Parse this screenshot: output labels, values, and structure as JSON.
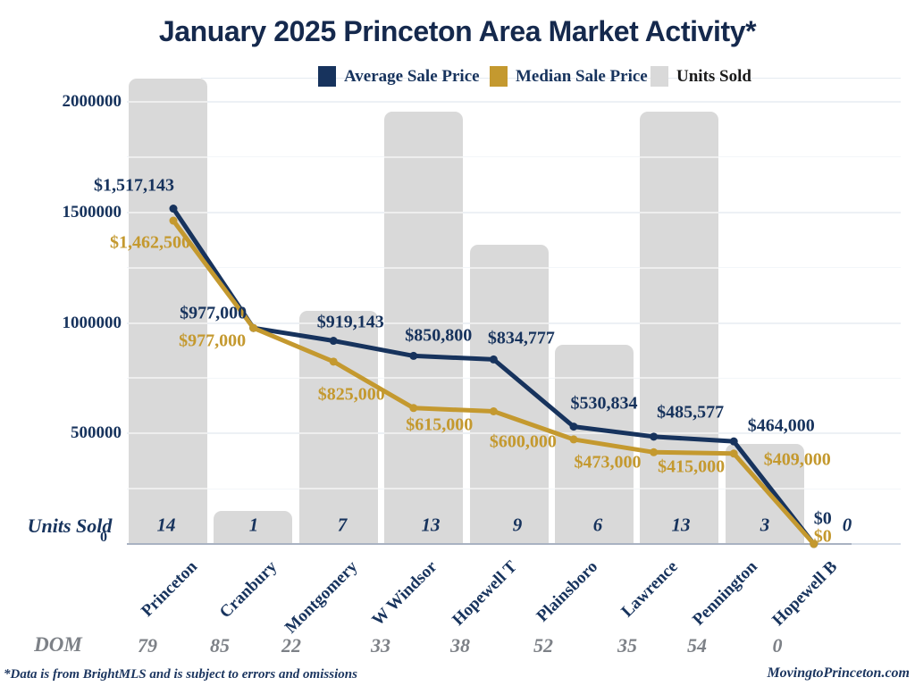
{
  "title": "January 2025 Princeton Area Market Activity*",
  "legend": {
    "items": [
      {
        "label": "Average Sale Price",
        "color": "#17335d",
        "text_color": "#17335d"
      },
      {
        "label": "Median Sale Price",
        "color": "#c4992f",
        "text_color": "#17335d"
      },
      {
        "label": "Units Sold",
        "color": "#d9d9d9",
        "text_color": "#1a1a1a"
      }
    ]
  },
  "rows": {
    "units_sold_label": "Units Sold",
    "dom_label": "DOM"
  },
  "footer": {
    "disclaimer": "*Data is from BrightMLS and is subject to errors and omissions",
    "website": "MovingtoPrinceton.com"
  },
  "colors": {
    "navy": "#17335d",
    "gold": "#c4992f",
    "bar_gray": "#d9d9d9",
    "gridline": "#d8dfe9",
    "zero_axis": "#a9b2c2",
    "dom_gray": "#7d8187",
    "title_navy": "#15294d"
  },
  "y_axis": {
    "ticks": [
      {
        "label": "2000000",
        "value": 2000000
      },
      {
        "label": "1500000",
        "value": 1500000
      },
      {
        "label": "1000000",
        "value": 1000000
      },
      {
        "label": "500000",
        "value": 500000
      },
      {
        "label": "0",
        "value": 0
      }
    ]
  },
  "chart_data": {
    "type": "combo",
    "subtypes": [
      "line",
      "line",
      "bar"
    ],
    "categories": [
      "Princeton",
      "Cranbury",
      "Montgomery",
      "W Windsor",
      "Hopewell T",
      "Plainsboro",
      "Lawrence",
      "Pennington",
      "Hopewell B"
    ],
    "series": [
      {
        "name": "Average Sale Price",
        "type": "line",
        "color": "#17335d",
        "values": [
          1517143,
          977000,
          919143,
          850800,
          834777,
          530834,
          485577,
          464000,
          0
        ],
        "labels": [
          "$1,517,143",
          "$977,000",
          "$919,143",
          "$850,800",
          "$834,777",
          "$530,834",
          "$485,577",
          "$464,000",
          "$0"
        ]
      },
      {
        "name": "Median Sale Price",
        "type": "line",
        "color": "#c4992f",
        "values": [
          1462500,
          977000,
          825000,
          615000,
          600000,
          473000,
          415000,
          409000,
          0
        ],
        "labels": [
          "$1,462,500",
          "$977,000",
          "$825,000",
          "$615,000",
          "$600,000",
          "$473,000",
          "$415,000",
          "$409,000",
          "$0"
        ]
      },
      {
        "name": "Units Sold",
        "type": "bar",
        "color": "#d9d9d9",
        "values": [
          14,
          1,
          7,
          13,
          9,
          6,
          13,
          3,
          0
        ]
      }
    ],
    "dom_row": {
      "label": "DOM",
      "values": [
        79,
        85,
        22,
        33,
        38,
        52,
        35,
        54,
        0
      ]
    },
    "ylim": [
      0,
      2000000
    ],
    "gridline_step": 250000,
    "major_step": 500000,
    "grid": true,
    "legend_position": "top",
    "xlabel": "",
    "ylabel": ""
  }
}
